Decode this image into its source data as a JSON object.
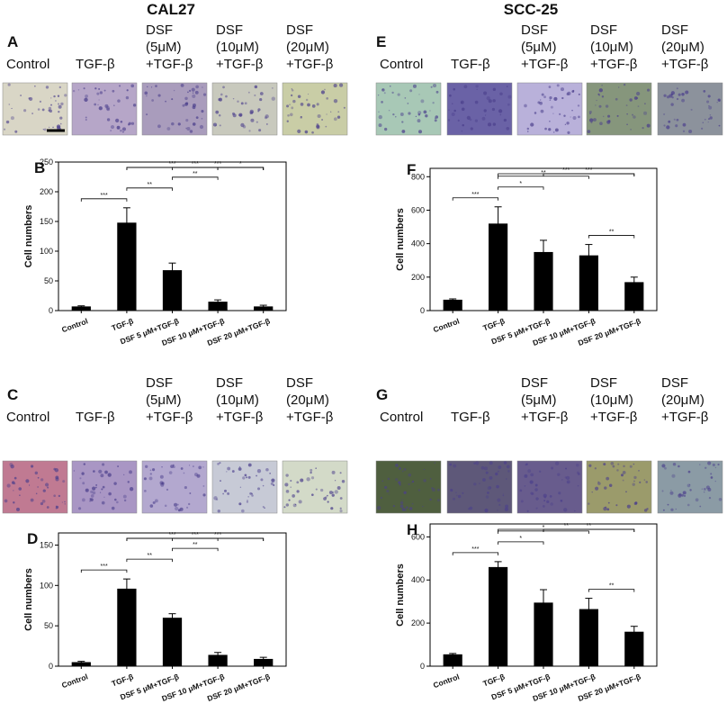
{
  "figure": {
    "titles": [
      "CAL27",
      "SCC-25"
    ],
    "rows": [
      {
        "label": "A",
        "headers": [
          [
            "Control"
          ],
          [
            "TGF-β"
          ],
          [
            "DSF",
            "(5μM)",
            "+TGF-β"
          ],
          [
            "DSF",
            "(10μM)",
            "+TGF-β"
          ],
          [
            "DSF",
            "(20μM)",
            "+TGF-β"
          ]
        ]
      },
      {
        "label": "E",
        "headers": [
          [
            "Control"
          ],
          [
            "TGF-β"
          ],
          [
            "DSF",
            "(5μM)",
            "+TGF-β"
          ],
          [
            "DSF",
            "(10μM)",
            "+TGF-β"
          ],
          [
            "DSF",
            "(20μM)",
            "+TGF-β"
          ]
        ]
      },
      {
        "label": "C",
        "headers": [
          [
            "Control"
          ],
          [
            "TGF-β"
          ],
          [
            "DSF",
            "(5μM)",
            "+TGF-β"
          ],
          [
            "DSF",
            "(10μM)",
            "+TGF-β"
          ],
          [
            "DSF",
            "(20μM)",
            "+TGF-β"
          ]
        ]
      },
      {
        "label": "G",
        "headers": [
          [
            "Control"
          ],
          [
            "TGF-β"
          ],
          [
            "DSF",
            "(5μM)",
            "+TGF-β"
          ],
          [
            "DSF",
            "(10μM)",
            "+TGF-β"
          ],
          [
            "DSF",
            "(20μM)",
            "+TGF-β"
          ]
        ]
      }
    ]
  },
  "chart_data": [
    {
      "type": "bar",
      "label": "B",
      "ylabel": "Cell numbers",
      "color": "#000000",
      "categories": [
        "Control",
        "TGF-β",
        "DSF 5 μM+TGF-β",
        "DSF 10 μM+TGF-β",
        "DSF 20 μM+TGF-β"
      ],
      "values": [
        7,
        148,
        68,
        15,
        7
      ],
      "errors": [
        1,
        25,
        12,
        3,
        2
      ],
      "ylim": [
        0,
        250
      ],
      "yticks": [
        0,
        50,
        100,
        150,
        200,
        250
      ],
      "annotations": [
        {
          "from": 0,
          "to": 1,
          "label": "***"
        },
        {
          "from": 1,
          "to": 2,
          "label": "**"
        },
        {
          "from": 1,
          "to": 3,
          "label": "***"
        },
        {
          "from": 1,
          "to": 4,
          "label": "***"
        },
        {
          "from": 2,
          "to": 3,
          "label": "**"
        },
        {
          "from": 2,
          "to": 4,
          "label": "***"
        },
        {
          "from": 3,
          "to": 4,
          "label": "*"
        }
      ]
    },
    {
      "type": "bar",
      "label": "F",
      "ylabel": "Cell numbers",
      "color": "#000000",
      "categories": [
        "Control",
        "TGF-β",
        "DSF 5 μM+TGF-β",
        "DSF 10 μM+TGF-β",
        "DSF 20 μM+TGF-β"
      ],
      "values": [
        65,
        520,
        350,
        330,
        170
      ],
      "errors": [
        5,
        100,
        70,
        65,
        30
      ],
      "ylim": [
        0,
        850
      ],
      "yticks": [
        0,
        200,
        400,
        600,
        800
      ],
      "annotations": [
        {
          "from": 0,
          "to": 1,
          "label": "***"
        },
        {
          "from": 1,
          "to": 2,
          "label": "*"
        },
        {
          "from": 1,
          "to": 3,
          "label": "**"
        },
        {
          "from": 1,
          "to": 4,
          "label": "***"
        },
        {
          "from": 2,
          "to": 4,
          "label": "***"
        },
        {
          "from": 3,
          "to": 4,
          "label": "**"
        }
      ]
    },
    {
      "type": "bar",
      "label": "D",
      "ylabel": "Cell numbers",
      "color": "#000000",
      "categories": [
        "Control",
        "TGF-β",
        "DSF 5 μM+TGF-β",
        "DSF 10 μM+TGF-β",
        "DSF 20 μM+TGF-β"
      ],
      "values": [
        5,
        96,
        60,
        14,
        9
      ],
      "errors": [
        1,
        12,
        5,
        3,
        2
      ],
      "ylim": [
        0,
        165
      ],
      "yticks": [
        0,
        50,
        100,
        150
      ],
      "annotations": [
        {
          "from": 0,
          "to": 1,
          "label": "***"
        },
        {
          "from": 1,
          "to": 2,
          "label": "**"
        },
        {
          "from": 1,
          "to": 3,
          "label": "***"
        },
        {
          "from": 1,
          "to": 4,
          "label": "***"
        },
        {
          "from": 2,
          "to": 3,
          "label": "**"
        },
        {
          "from": 2,
          "to": 4,
          "label": "***"
        }
      ]
    },
    {
      "type": "bar",
      "label": "H",
      "ylabel": "Cell numbers",
      "color": "#000000",
      "categories": [
        "Control",
        "TGF-β",
        "DSF 5 μM+TGF-β",
        "DSF 10 μM+TGF-β",
        "DSF 20 μM+TGF-β"
      ],
      "values": [
        55,
        460,
        295,
        265,
        160
      ],
      "errors": [
        4,
        25,
        60,
        50,
        25
      ],
      "ylim": [
        0,
        660
      ],
      "yticks": [
        0,
        200,
        400,
        600
      ],
      "annotations": [
        {
          "from": 0,
          "to": 1,
          "label": "***"
        },
        {
          "from": 1,
          "to": 2,
          "label": "*"
        },
        {
          "from": 1,
          "to": 3,
          "label": "*"
        },
        {
          "from": 1,
          "to": 4,
          "label": "**"
        },
        {
          "from": 2,
          "to": 4,
          "label": "**"
        },
        {
          "from": 3,
          "to": 4,
          "label": "**"
        }
      ]
    }
  ]
}
